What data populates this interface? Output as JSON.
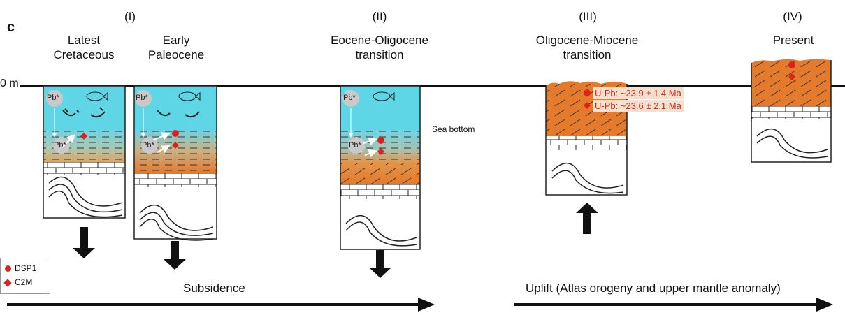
{
  "panel_letter": "c",
  "depth_label": "0 m",
  "stages": [
    {
      "roman": "(I)",
      "title": "Latest\nCretaceous"
    },
    {
      "title": "Early\nPaleocene"
    },
    {
      "roman": "(II)",
      "title": "Eocene-Oligocene\ntransition"
    },
    {
      "roman": "(III)",
      "title": "Oligocene-Miocene\ntransition"
    },
    {
      "roman": "(IV)",
      "title": "Present"
    }
  ],
  "sea_bottom_label": "Sea bottom",
  "pb_label": "Pb*",
  "ages": [
    "U-Pb: ~23.9 ± 1.4 Ma",
    "U-Pb: ~23.6 ± 2.1 Ma"
  ],
  "legend": [
    {
      "label": "DSP1",
      "marker": "circle"
    },
    {
      "label": "C2M",
      "marker": "diamond"
    }
  ],
  "subsidence_label": "Subsidence",
  "uplift_label": "Uplift (Atlas orogeny and upper mantle anomaly)",
  "colors": {
    "water": "#5fd6e6",
    "sediment": "#e47a2c",
    "marker": "#e0201a",
    "age_bg": "#f3e1cf"
  }
}
